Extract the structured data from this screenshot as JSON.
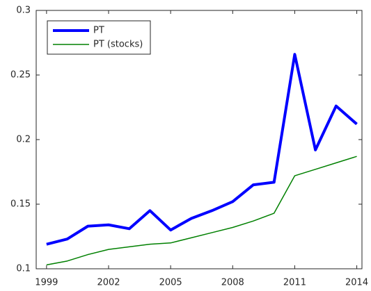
{
  "chart_data": {
    "type": "line",
    "x": [
      1999,
      2000,
      2001,
      2002,
      2003,
      2004,
      2005,
      2006,
      2007,
      2008,
      2009,
      2010,
      2011,
      2012,
      2013,
      2014
    ],
    "series": [
      {
        "name": "PT",
        "color": "#0000ff",
        "width": 4,
        "values": [
          0.119,
          0.123,
          0.133,
          0.134,
          0.131,
          0.145,
          0.13,
          0.139,
          0.145,
          0.152,
          0.165,
          0.167,
          0.266,
          0.192,
          0.226,
          0.212
        ]
      },
      {
        "name": "PT (stocks)",
        "color": "#008000",
        "width": 1.5,
        "values": [
          0.103,
          0.106,
          0.111,
          0.115,
          0.117,
          0.119,
          0.12,
          0.124,
          0.128,
          0.132,
          0.137,
          0.143,
          0.172,
          0.177,
          0.182,
          0.187
        ]
      }
    ],
    "xlim": [
      1998.5,
      2014.25
    ],
    "xticks": [
      1999,
      2002,
      2005,
      2008,
      2011,
      2014
    ],
    "ylim": [
      0.1,
      0.3
    ],
    "yticks": [
      0.1,
      0.15,
      0.2,
      0.25,
      0.3
    ],
    "legend": "upper-left"
  }
}
